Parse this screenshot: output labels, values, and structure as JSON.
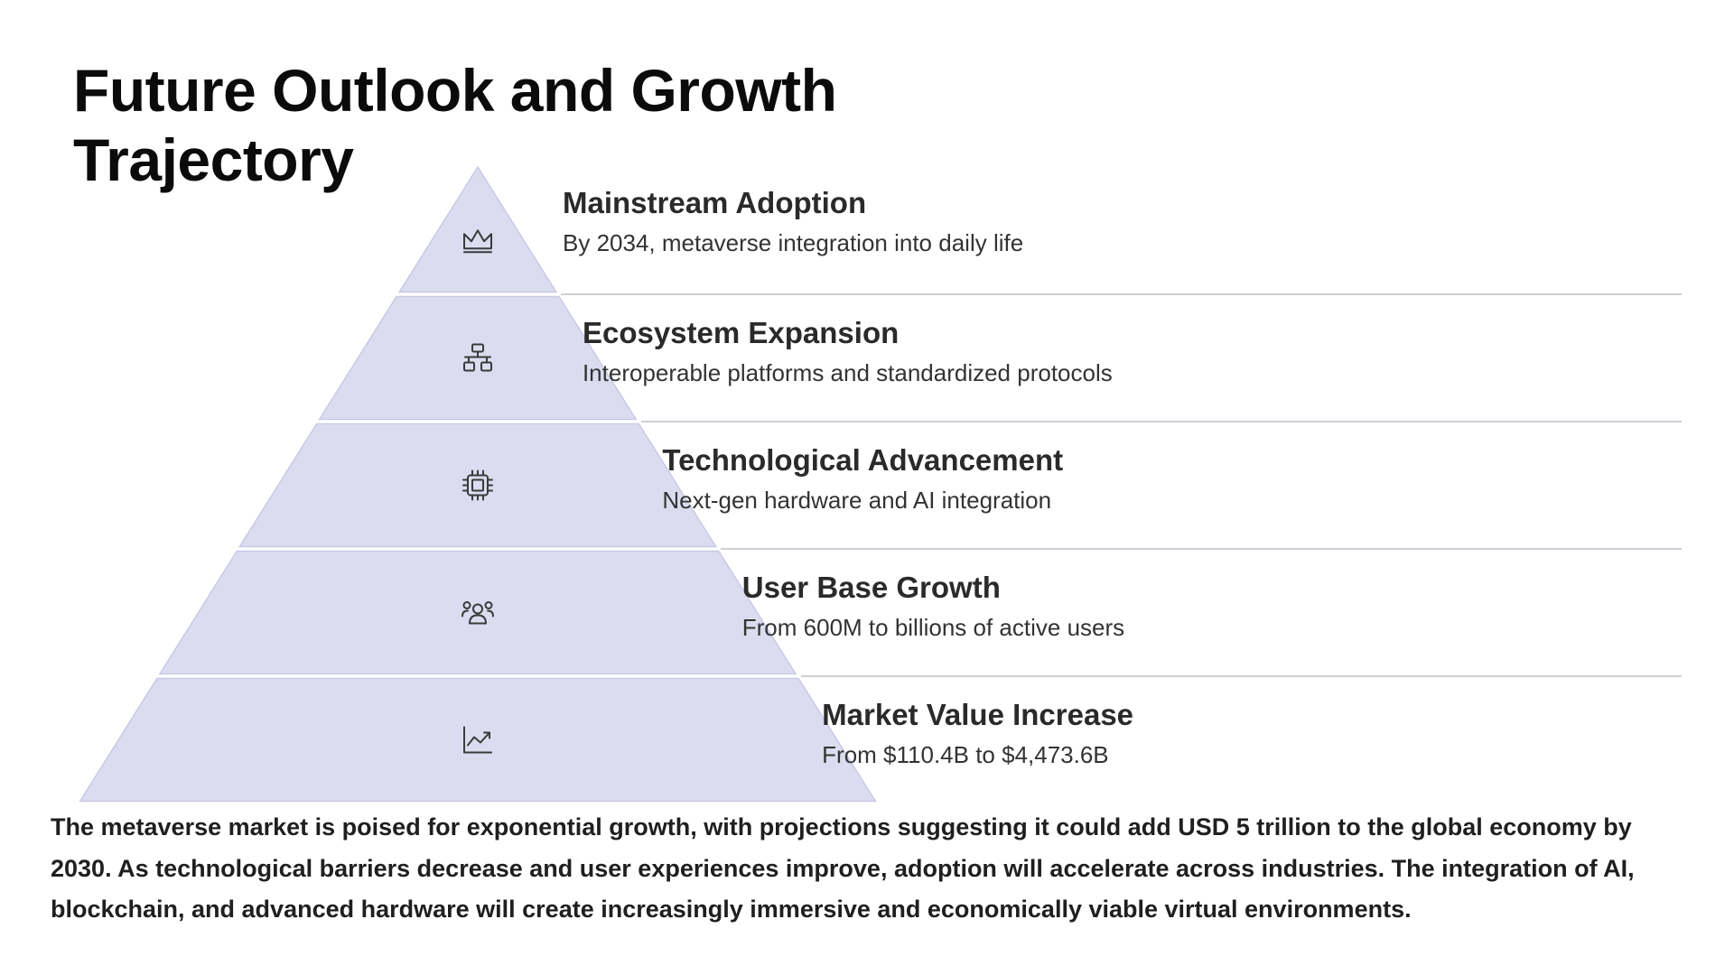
{
  "page": {
    "title": "Future Outlook and Growth Trajectory",
    "summary": "The metaverse market is poised for exponential growth, with projections suggesting it could add USD 5 trillion to the global economy by 2030. As technological barriers decrease and user experiences improve, adoption will accelerate across industries. The integration of AI, blockchain, and advanced hardware will create increasingly immersive and economically viable virtual environments."
  },
  "colors": {
    "tier_fill": "#dcdcf0",
    "tier_stroke": "#c9c9e6",
    "icon": "#3a3a3a",
    "divider": "#cfcfd6"
  },
  "levels": [
    {
      "title": "Mainstream Adoption",
      "description": "By 2034, metaverse integration into daily life",
      "icon": "crown-icon"
    },
    {
      "title": "Ecosystem Expansion",
      "description": "Interoperable platforms and standardized protocols",
      "icon": "network-icon"
    },
    {
      "title": "Technological Advancement",
      "description": "Next-gen hardware and AI integration",
      "icon": "chip-icon"
    },
    {
      "title": "User Base Growth",
      "description": "From 600M to billions of active users",
      "icon": "users-icon"
    },
    {
      "title": "Market Value Increase",
      "description": "From $110.4B to $4,473.6B",
      "icon": "chart-trend-icon"
    }
  ]
}
